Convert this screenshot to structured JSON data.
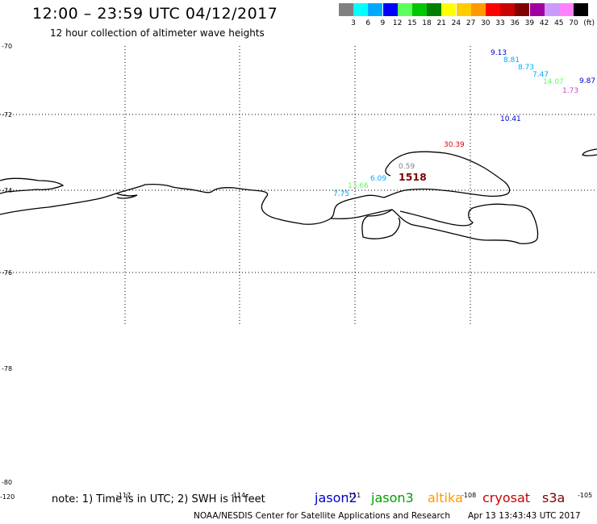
{
  "header": {
    "title": "12:00 – 23:59 UTC 04/12/2017",
    "subtitle": "12 hour collection of altimeter wave heights"
  },
  "legend": {
    "bins": [
      {
        "color": "#808080",
        "label": "3"
      },
      {
        "color": "#00ffff",
        "label": "6"
      },
      {
        "color": "#00a8ff",
        "label": "9"
      },
      {
        "color": "#0000ff",
        "label": "12"
      },
      {
        "color": "#5cff5c",
        "label": "15"
      },
      {
        "color": "#00c800",
        "label": "18"
      },
      {
        "color": "#008000",
        "label": "21"
      },
      {
        "color": "#ffff00",
        "label": "24"
      },
      {
        "color": "#ffcc00",
        "label": "27"
      },
      {
        "color": "#ff9900",
        "label": "30"
      },
      {
        "color": "#ff0000",
        "label": "33"
      },
      {
        "color": "#cc0000",
        "label": "36"
      },
      {
        "color": "#800000",
        "label": "39"
      },
      {
        "color": "#a000a0",
        "label": "42"
      },
      {
        "color": "#cc99ff",
        "label": "45"
      },
      {
        "color": "#ff80ff",
        "label": "70"
      },
      {
        "color": "#000000",
        "label": ""
      }
    ],
    "unit": "(ft)"
  },
  "axes": {
    "lat_labels": [
      "-70",
      "-72",
      "-74",
      "-76",
      "-78",
      "-80"
    ],
    "lon_labels": [
      "-120",
      "-117",
      "-114",
      "-111",
      "-108",
      "-105"
    ]
  },
  "observations": [
    {
      "text": "9.13",
      "color": "#0000cc"
    },
    {
      "text": "8.81",
      "color": "#00a8ff"
    },
    {
      "text": "8.73",
      "color": "#00a8ff"
    },
    {
      "text": "7.47",
      "color": "#00a8ff"
    },
    {
      "text": "14.07",
      "color": "#5cff5c"
    },
    {
      "text": "1.73",
      "color": "#cc44cc"
    },
    {
      "text": "9.87",
      "color": "#0000cc"
    },
    {
      "text": "10.41",
      "color": "#0000cc"
    },
    {
      "text": "30.39",
      "color": "#dd0000"
    },
    {
      "text": "0.59",
      "color": "#808080"
    },
    {
      "text": "1518",
      "color": "#800000"
    },
    {
      "text": "6.09",
      "color": "#00a8ff"
    },
    {
      "text": "13.66",
      "color": "#5cff5c"
    },
    {
      "text": "7.75",
      "color": "#00a8ff"
    }
  ],
  "footer": {
    "note": "note: 1) Time is in UTC; 2) SWH is in feet",
    "satellites": [
      {
        "name": "jason2",
        "color": "#0000cc"
      },
      {
        "name": "jason3",
        "color": "#00a000"
      },
      {
        "name": "altika",
        "color": "#ff9900"
      },
      {
        "name": "cryosat",
        "color": "#cc0000"
      },
      {
        "name": "s3a",
        "color": "#800000"
      }
    ],
    "credit": "NOAA/NESDIS Center for Satellite Applications and Research",
    "timestamp": "Apr 13 13:43:43 UTC 2017"
  }
}
